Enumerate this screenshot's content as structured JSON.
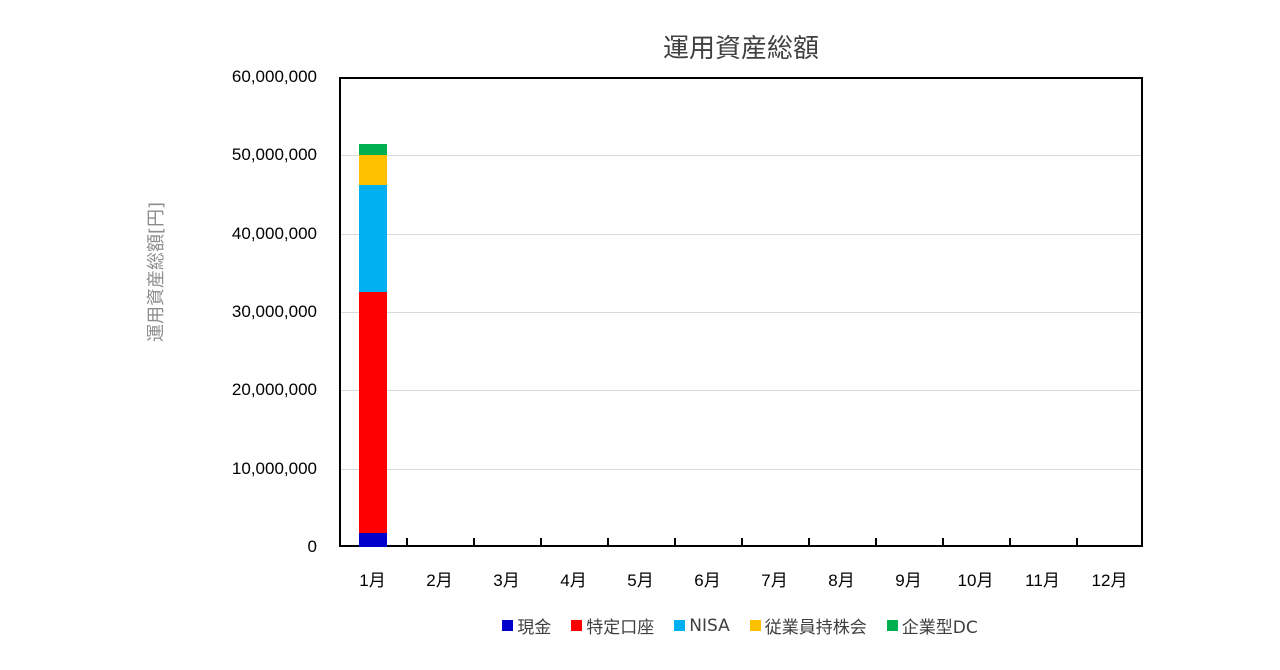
{
  "chart_data": {
    "type": "bar",
    "stacked": true,
    "title": "運用資産総額",
    "xlabel": "",
    "ylabel": "運用資産総額[円]",
    "ylim": [
      0,
      60000000
    ],
    "yticks": [
      "0",
      "10,000,000",
      "20,000,000",
      "30,000,000",
      "40,000,000",
      "50,000,000",
      "60,000,000"
    ],
    "ytick_values": [
      0,
      10000000,
      20000000,
      30000000,
      40000000,
      50000000,
      60000000
    ],
    "grid": true,
    "legend_position": "bottom",
    "categories": [
      "1月",
      "2月",
      "3月",
      "4月",
      "5月",
      "6月",
      "7月",
      "8月",
      "9月",
      "10月",
      "11月",
      "12月"
    ],
    "series": [
      {
        "name": "現金",
        "color": "#0000CC",
        "values": [
          1800000,
          null,
          null,
          null,
          null,
          null,
          null,
          null,
          null,
          null,
          null,
          null
        ]
      },
      {
        "name": "特定口座",
        "color": "#FF0000",
        "values": [
          30700000,
          null,
          null,
          null,
          null,
          null,
          null,
          null,
          null,
          null,
          null,
          null
        ]
      },
      {
        "name": "NISA",
        "color": "#00B0F0",
        "values": [
          13650000,
          null,
          null,
          null,
          null,
          null,
          null,
          null,
          null,
          null,
          null,
          null
        ]
      },
      {
        "name": "従業員持株会",
        "color": "#FFC000",
        "values": [
          3850000,
          null,
          null,
          null,
          null,
          null,
          null,
          null,
          null,
          null,
          null,
          null
        ]
      },
      {
        "name": "企業型DC",
        "color": "#00B050",
        "values": [
          1500000,
          null,
          null,
          null,
          null,
          null,
          null,
          null,
          null,
          null,
          null,
          null
        ]
      }
    ]
  }
}
